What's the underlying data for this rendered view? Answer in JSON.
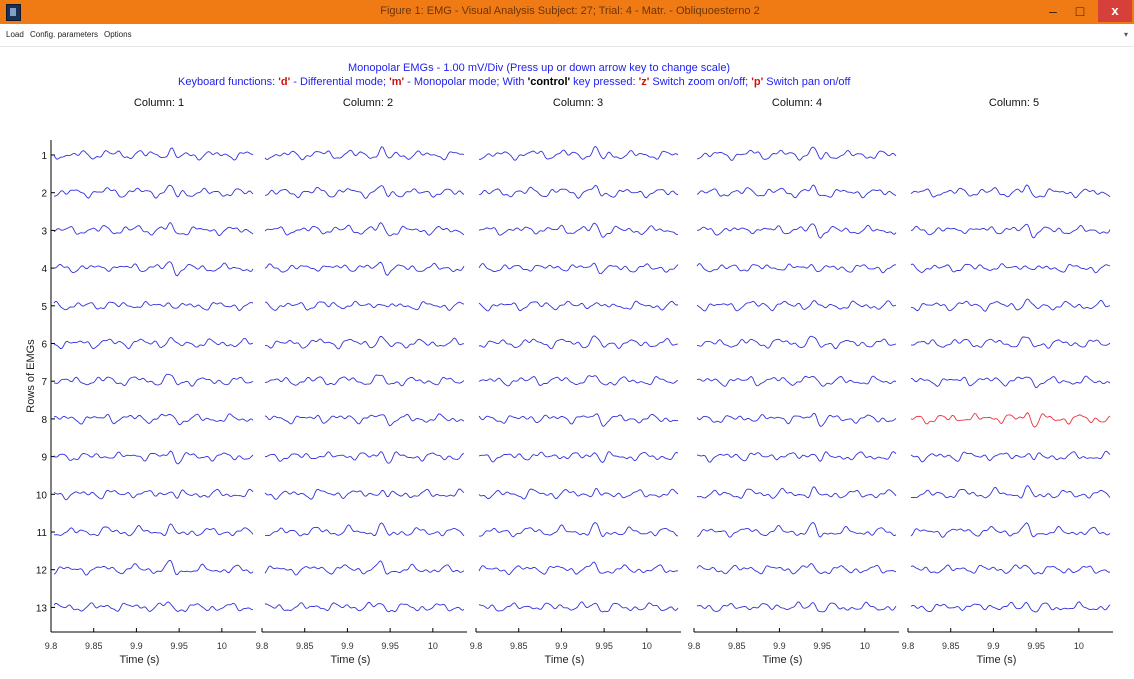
{
  "window": {
    "title": "Figure 1: EMG - Visual Analysis Subject: 27; Trial: 4 - Matr. - Obliquoesterno 2",
    "minimize_glyph": "–",
    "maximize_glyph": "□",
    "close_glyph": "x"
  },
  "menu": {
    "items": [
      "Load",
      "Config. parameters",
      "Options"
    ]
  },
  "header": {
    "line1": "Monopolar EMGs - 1.00 mV/Div (Press up or down arrow key to change scale)",
    "line2_parts": [
      {
        "text": "Keyboard functions: ",
        "style": "normal"
      },
      {
        "text": "'d'",
        "style": "key"
      },
      {
        "text": " - Differential mode; ",
        "style": "normal"
      },
      {
        "text": "'m'",
        "style": "key"
      },
      {
        "text": " - Monopolar mode; With ",
        "style": "normal"
      },
      {
        "text": "'control'",
        "style": "bold"
      },
      {
        "text": " key pressed: ",
        "style": "normal"
      },
      {
        "text": "'z'",
        "style": "key"
      },
      {
        "text": " Switch zoom on/off; ",
        "style": "normal"
      },
      {
        "text": "'p'",
        "style": "key"
      },
      {
        "text": " Switch pan on/off",
        "style": "normal"
      }
    ]
  },
  "chart_data": {
    "type": "line",
    "ylabel": "Rows of EMGs",
    "xlabel": "Time (s)",
    "columns": [
      "Column: 1",
      "Column: 2",
      "Column: 3",
      "Column: 4",
      "Column: 5"
    ],
    "rows": [
      "1",
      "2",
      "3",
      "4",
      "5",
      "6",
      "7",
      "8",
      "9",
      "10",
      "11",
      "12",
      "13"
    ],
    "x_range": [
      9.8,
      10.04
    ],
    "x_ticks": [
      "9.8",
      "9.85",
      "9.9",
      "9.95",
      "10"
    ],
    "missing_channels": [
      {
        "row": "1",
        "column": "Column: 5"
      }
    ],
    "highlighted_channels": [
      {
        "row": "8",
        "column": "Column: 5"
      }
    ],
    "scale_mV_per_div": 1.0,
    "colors": {
      "trace": "#3232dc",
      "highlight": "#e8343c",
      "axis": "#000000"
    },
    "grid": false
  }
}
